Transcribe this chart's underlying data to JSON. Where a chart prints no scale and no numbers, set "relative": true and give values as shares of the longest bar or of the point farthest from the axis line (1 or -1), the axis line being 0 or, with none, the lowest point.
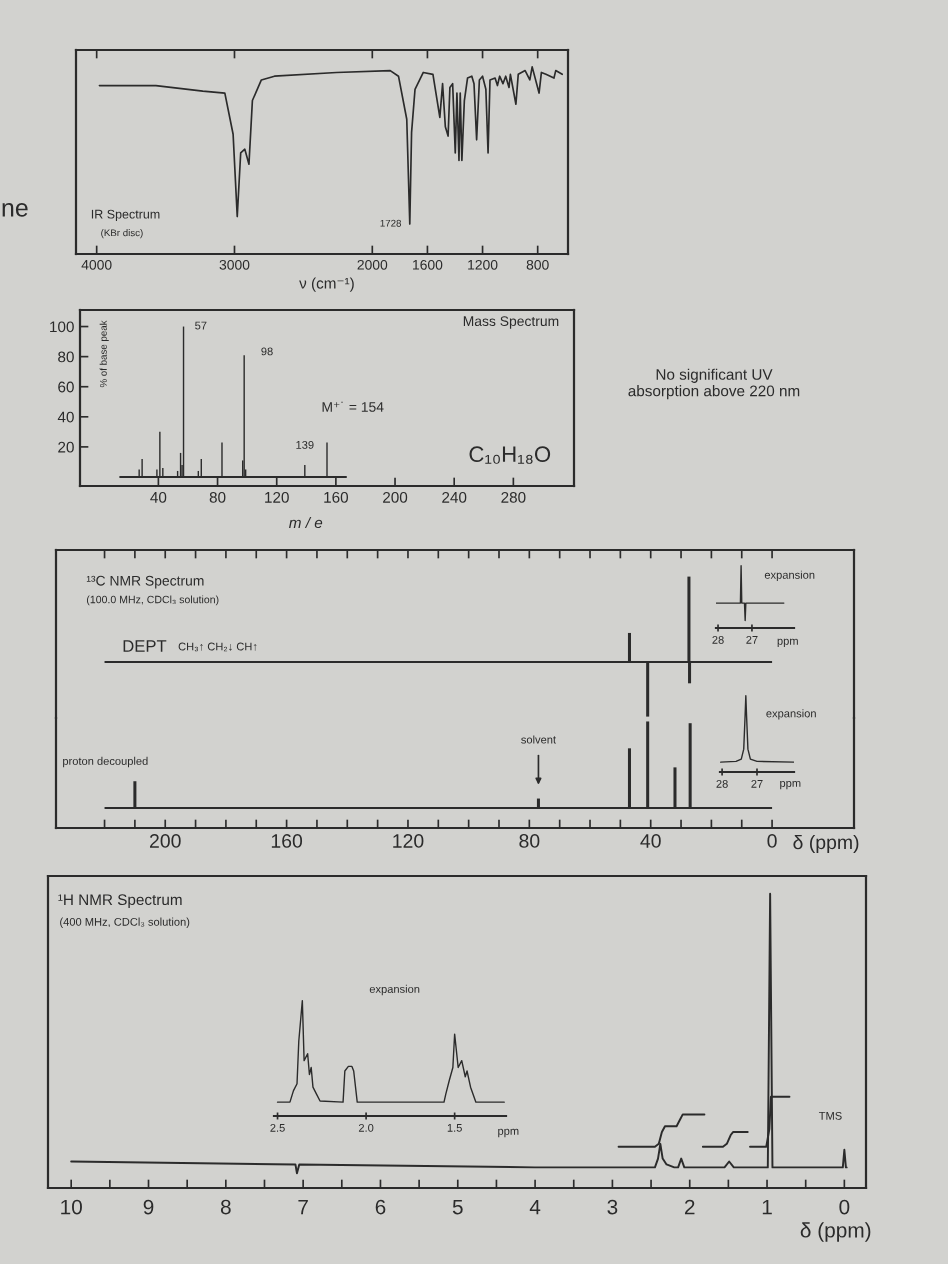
{
  "chart_data": [
    {
      "type": "line",
      "relative": true,
      "title": "IR Spectrum",
      "subtitle": "(KBr disc)",
      "xlabel": "ν (cm⁻¹)",
      "xlim": [
        4150,
        580
      ],
      "xticks": [
        4000,
        3000,
        2000,
        1600,
        1200,
        800
      ],
      "series": [
        {
          "color": "#2b2b2b",
          "x": [
            3980,
            3570,
            3230,
            3070,
            3010,
            2980,
            2955,
            2925,
            2895,
            2870,
            2805,
            2710,
            2260,
            1870,
            1810,
            1750,
            1728,
            1715,
            1690,
            1630,
            1560,
            1510,
            1490,
            1470,
            1450,
            1437,
            1417,
            1398,
            1386,
            1371,
            1362,
            1350,
            1332,
            1309,
            1278,
            1262,
            1243,
            1223,
            1200,
            1176,
            1160,
            1146,
            1109,
            1092,
            1076,
            1052,
            1032,
            1008,
            998,
            958,
            941,
            891,
            857,
            840,
            790,
            773,
            740,
            682,
            669,
            622
          ],
          "values": [
            0.9,
            0.9,
            0.87,
            0.86,
            0.64,
            0.2,
            0.54,
            0.56,
            0.48,
            0.82,
            0.93,
            0.95,
            0.97,
            0.98,
            0.95,
            0.72,
            0.16,
            0.65,
            0.88,
            0.97,
            0.96,
            0.73,
            0.91,
            0.68,
            0.63,
            0.89,
            0.91,
            0.54,
            0.86,
            0.5,
            0.86,
            0.5,
            0.82,
            0.94,
            0.95,
            0.91,
            0.61,
            0.93,
            0.95,
            0.88,
            0.54,
            0.93,
            0.94,
            0.9,
            0.95,
            0.91,
            0.95,
            0.89,
            0.96,
            0.8,
            0.96,
            0.98,
            0.93,
            1,
            0.86,
            0.97,
            0.96,
            0.94,
            0.98,
            0.96
          ]
        }
      ],
      "annotations": [
        {
          "text": "1728",
          "x": 1728,
          "y": 0.16
        },
        "ne"
      ]
    },
    {
      "type": "bar",
      "title": "Mass Spectrum",
      "xlabel": "m / e",
      "ylabel": "% of base peak",
      "x": [
        27,
        29,
        39,
        41,
        43,
        53,
        55,
        56,
        57,
        67,
        69,
        83,
        97,
        98,
        99,
        139,
        154
      ],
      "xlim": [
        -13,
        321
      ],
      "xticks": [
        40,
        80,
        120,
        160,
        200,
        240,
        280
      ],
      "ylim": [
        -6,
        111
      ],
      "yticks": [
        20,
        40,
        60,
        80,
        100
      ],
      "series": [
        {
          "color": "#2b2b2b",
          "values": [
            5,
            12,
            5,
            30,
            6,
            4,
            16,
            8,
            100,
            4,
            12,
            23,
            11,
            81,
            5,
            8,
            23
          ]
        }
      ],
      "ref_lines": [
        {
          "axis": "y",
          "value": 0,
          "color": "#2b2b2b"
        }
      ],
      "annotations": [
        {
          "text": "57",
          "x": 57,
          "y": 100
        },
        {
          "text": "98",
          "x": 98,
          "y": 81
        },
        {
          "text": "139",
          "x": 139,
          "y": 8
        },
        {
          "text": "M⁺˙ = 154",
          "x": 154,
          "y": 23
        },
        "C₁₀H₁₈O",
        "No significant UV absorption above 220 nm"
      ]
    },
    {
      "type": "bar",
      "relative": true,
      "title": "¹³C NMR Spectrum",
      "subtitle": "(100.0 MHz, CDCl₃ solution)",
      "x": [
        47,
        41,
        27.4,
        27.2
      ],
      "xlim": [
        236,
        -27
      ],
      "xticks": [
        {
          "value": 220,
          "label": null
        },
        {
          "value": 210,
          "label": null
        },
        200,
        {
          "value": 190,
          "label": null
        },
        {
          "value": 180,
          "label": null
        },
        {
          "value": 170,
          "label": null
        },
        160,
        {
          "value": 150,
          "label": null
        },
        {
          "value": 140,
          "label": null
        },
        {
          "value": 130,
          "label": null
        },
        120,
        {
          "value": 110,
          "label": null
        },
        {
          "value": 100,
          "label": null
        },
        {
          "value": 90,
          "label": null
        },
        80,
        {
          "value": 70,
          "label": null
        },
        {
          "value": 60,
          "label": null
        },
        {
          "value": 50,
          "label": null
        },
        40,
        {
          "value": 30,
          "label": null
        },
        {
          "value": 20,
          "label": null
        },
        {
          "value": 10,
          "label": null
        },
        0
      ],
      "tick_labels": false,
      "series": [
        {
          "color": "#2b2b2b",
          "values": [
            0.34,
            -0.64,
            1,
            -0.25
          ]
        }
      ],
      "ref_lines": [
        {
          "axis": "y",
          "value": 0,
          "color": "#2b2b2b"
        }
      ],
      "annotations": [
        "DEPT",
        "CH₃↑ CH₂↓ CH↑"
      ]
    },
    {
      "type": "line",
      "relative": true,
      "title": "expansion",
      "xlabel": "ppm",
      "xlim": [
        28.06,
        25.76
      ],
      "xticks": [
        28,
        27
      ],
      "series": [
        {
          "color": "#2b2b2b",
          "x": [
            28.05,
            27.34,
            27.32,
            27.3,
            27.22,
            27.2,
            27.18,
            26.06
          ],
          "values": [
            0.4,
            0.4,
            1,
            0.4,
            0.4,
            0.12,
            0.4,
            0.4
          ]
        }
      ]
    },
    {
      "type": "bar",
      "relative": true,
      "xlabel": "δ (ppm)",
      "x": [
        210,
        77,
        47,
        41,
        32,
        27
      ],
      "xlim": [
        236,
        -27
      ],
      "xticks": [
        {
          "value": 220,
          "label": null
        },
        {
          "value": 210,
          "label": null
        },
        200,
        {
          "value": 190,
          "label": null
        },
        {
          "value": 180,
          "label": null
        },
        {
          "value": 170,
          "label": null
        },
        160,
        {
          "value": 150,
          "label": null
        },
        {
          "value": 140,
          "label": null
        },
        {
          "value": 130,
          "label": null
        },
        120,
        {
          "value": 110,
          "label": null
        },
        {
          "value": 100,
          "label": null
        },
        {
          "value": 90,
          "label": null
        },
        80,
        {
          "value": 70,
          "label": null
        },
        {
          "value": 60,
          "label": null
        },
        {
          "value": 50,
          "label": null
        },
        40,
        {
          "value": 30,
          "label": null
        },
        {
          "value": 20,
          "label": null
        },
        {
          "value": 10,
          "label": null
        },
        0
      ],
      "series": [
        {
          "color": "#2b2b2b",
          "values": [
            0.31,
            0.11,
            0.69,
            1,
            0.47,
            0.98
          ]
        }
      ],
      "ref_lines": [
        {
          "axis": "y",
          "value": 0,
          "color": "#2b2b2b"
        }
      ],
      "annotations": [
        "proton decoupled",
        {
          "text": "solvent",
          "x": 77,
          "y": 0.11
        }
      ]
    },
    {
      "type": "line",
      "relative": true,
      "title": "expansion",
      "xlabel": "ppm",
      "xlim": [
        28.06,
        25.94
      ],
      "xticks": [
        28,
        27
      ],
      "series": [
        {
          "color": "#2b2b2b",
          "x": [
            28.04,
            27.6,
            27.45,
            27.38,
            27.34,
            27.32,
            27.3,
            27.26,
            27.19,
            27.0,
            25.95
          ],
          "values": [
            0.13,
            0.14,
            0.17,
            0.3,
            0.75,
            1,
            0.75,
            0.3,
            0.17,
            0.14,
            0.13
          ]
        }
      ]
    },
    {
      "type": "line",
      "relative": true,
      "title": "¹H NMR Spectrum",
      "subtitle": "(400 MHz, CDCl₃ solution)",
      "xlabel": "δ (ppm)",
      "xlim": [
        10.3,
        -0.28
      ],
      "xticks": [
        10,
        {
          "value": 9.5,
          "label": null
        },
        9,
        {
          "value": 8.5,
          "label": null
        },
        8,
        {
          "value": 7.5,
          "label": null
        },
        7,
        {
          "value": 6.5,
          "label": null
        },
        6,
        {
          "value": 5.5,
          "label": null
        },
        5,
        {
          "value": 4.5,
          "label": null
        },
        4,
        {
          "value": 3.5,
          "label": null
        },
        3,
        {
          "value": 2.5,
          "label": null
        },
        2,
        {
          "value": 1.5,
          "label": null
        },
        1,
        {
          "value": 0.5,
          "label": null
        },
        0
      ],
      "series": [
        {
          "color": "#2b2b2b",
          "x": [
            10,
            7.1,
            7.08,
            7.05,
            4,
            2.6,
            2.45,
            2.41,
            2.38,
            2.35,
            2.3,
            2.2,
            2.15,
            2.11,
            2.07,
            1.6,
            1.55,
            1.49,
            1.43,
            1.35,
            0.99,
            0.96,
            0.93,
            0.02,
            0,
            -0.02,
            -0.03
          ],
          "values": [
            0.09,
            0.08,
            0.05,
            0.08,
            0.07,
            0.07,
            0.07,
            0.1,
            0.15,
            0.1,
            0.08,
            0.07,
            0.07,
            0.1,
            0.07,
            0.07,
            0.07,
            0.09,
            0.07,
            0.07,
            0.07,
            1,
            0.07,
            0.07,
            0.13,
            0.07,
            0.07
          ]
        },
        {
          "color": "#2b2b2b",
          "x": [
            2.92,
            2.45,
            2.4,
            2.36,
            2.32,
            2.17,
            2.13,
            2.09,
            1.81
          ],
          "values": [
            0.14,
            0.14,
            0.15,
            0.19,
            0.21,
            0.21,
            0.23,
            0.25,
            0.25
          ]
        },
        {
          "color": "#2b2b2b",
          "x": [
            1.83,
            1.57,
            1.52,
            1.47,
            1.44,
            1.25
          ],
          "values": [
            0.14,
            0.14,
            0.15,
            0.18,
            0.19,
            0.19
          ]
        },
        {
          "color": "#2b2b2b",
          "x": [
            1.22,
            1.01,
            0.97,
            0.95,
            0.71
          ],
          "values": [
            0.14,
            0.14,
            0.2,
            0.31,
            0.31
          ]
        }
      ],
      "annotations": [
        {
          "text": "TMS",
          "x": 0,
          "y": 0.13
        }
      ]
    },
    {
      "type": "line",
      "relative": true,
      "title": "expansion",
      "xlabel": "ppm",
      "xlim": [
        2.52,
        1.21
      ],
      "xticks": [
        2.5,
        {
          "value": 2,
          "label": "2.0"
        },
        1.5
      ],
      "series": [
        {
          "color": "#2b2b2b",
          "x": [
            2.5,
            2.43,
            2.41,
            2.39,
            2.38,
            2.36,
            2.35,
            2.33,
            2.32,
            2.31,
            2.3,
            2.28,
            2.26,
            2.13,
            2.12,
            2.1,
            2.08,
            2.07,
            2.05,
            1.56,
            1.55,
            1.53,
            1.51,
            1.5,
            1.48,
            1.46,
            1.44,
            1.43,
            1.41,
            1.38,
            1.22
          ],
          "values": [
            0.12,
            0.12,
            0.22,
            0.28,
            0.65,
            1,
            0.48,
            0.54,
            0.36,
            0.42,
            0.25,
            0.19,
            0.13,
            0.12,
            0.39,
            0.43,
            0.43,
            0.39,
            0.12,
            0.12,
            0.19,
            0.31,
            0.42,
            0.71,
            0.42,
            0.48,
            0.34,
            0.39,
            0.25,
            0.12,
            0.12
          ]
        }
      ]
    }
  ]
}
